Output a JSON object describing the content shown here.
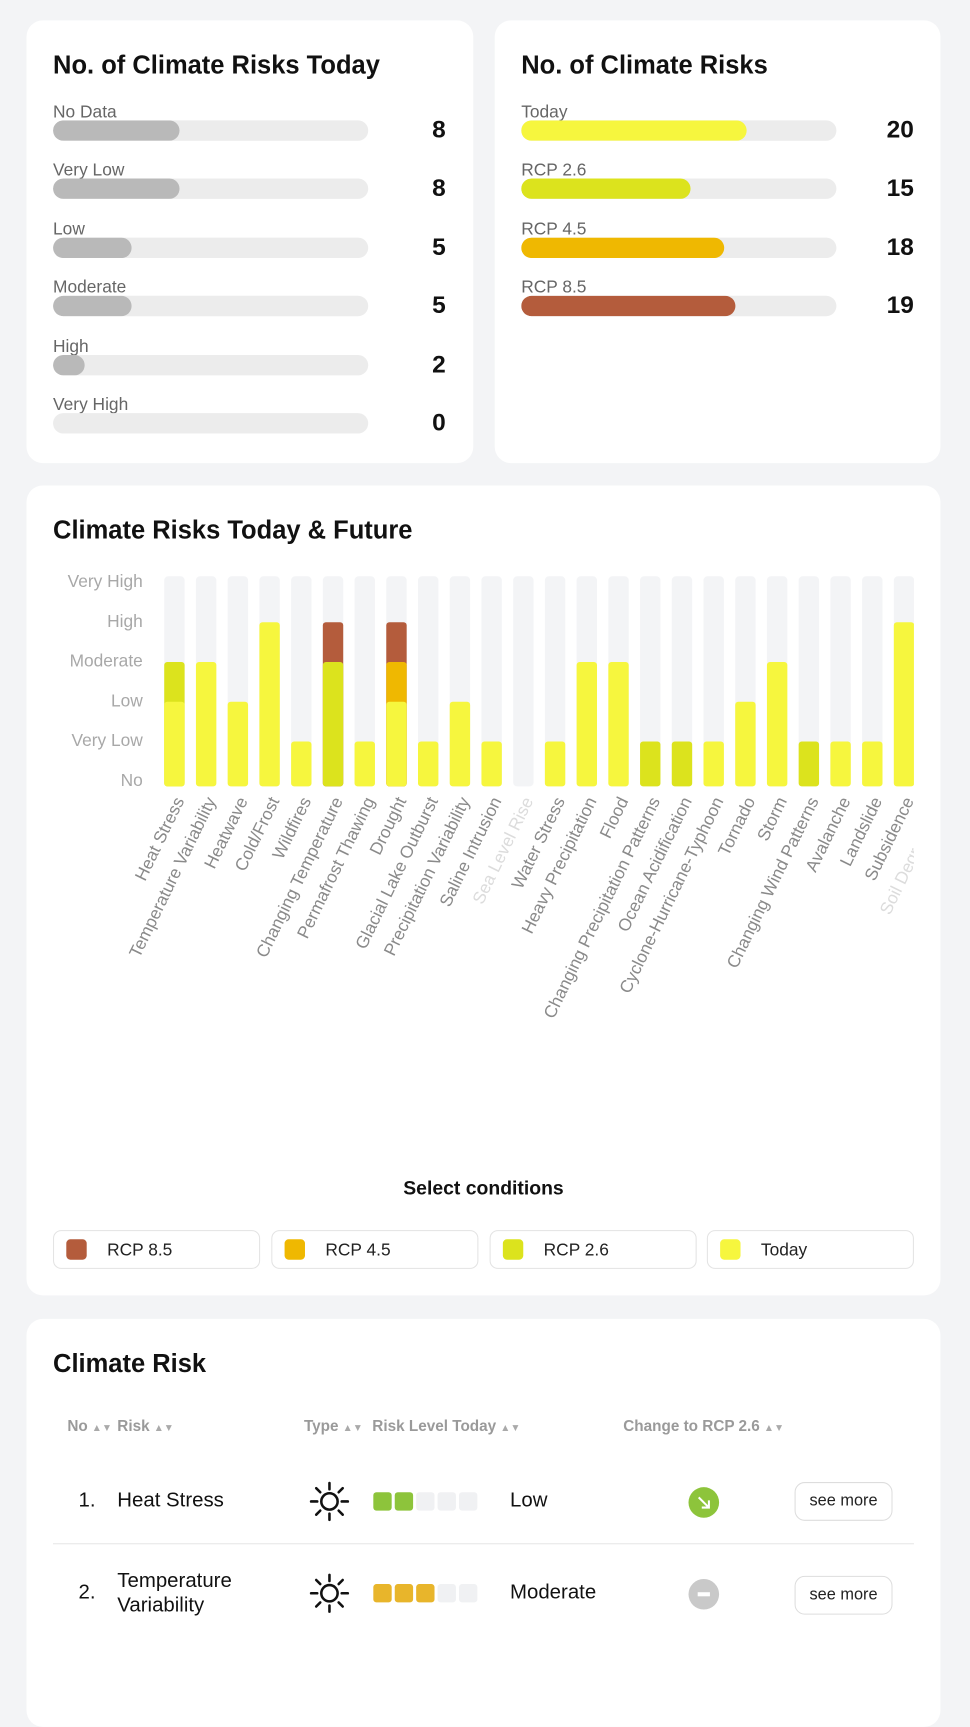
{
  "summary_today": {
    "type": "bar",
    "title": "No. of Climate Risks Today",
    "categories": [
      "No Data",
      "Very Low",
      "Low",
      "Moderate",
      "High",
      "Very High"
    ],
    "values": [
      8,
      8,
      5,
      5,
      2,
      0
    ],
    "xlim": [
      0,
      20
    ],
    "color": "#b9b9b9"
  },
  "summary_scenarios": {
    "type": "bar",
    "title": "No. of Climate Risks",
    "categories": [
      "Today",
      "RCP 2.6",
      "RCP 4.5",
      "RCP 8.5"
    ],
    "values": [
      20,
      15,
      18,
      19
    ],
    "xlim": [
      0,
      28
    ],
    "colors": [
      "#f6f63e",
      "#dce31d",
      "#efb801",
      "#b45c3c"
    ]
  },
  "chart_data": {
    "type": "bar",
    "title": "Climate Risks Today & Future",
    "categories": [
      "Heat Stress",
      "Temperature Variability",
      "Heatwave",
      "Cold/Frost",
      "Wildfires",
      "Changing Temperature",
      "Permafrost Thawing",
      "Drought",
      "Glacial Lake Outburst",
      "Precipitation Variability",
      "Saline Intrusion",
      "Sea Level Rise",
      "Water Stress",
      "Heavy Precipitation",
      "Flood",
      "Changing Precipitation Patterns",
      "Ocean Acidification",
      "Cyclone-Hurricane-Typhoon",
      "Tornado",
      "Storm",
      "Changing Wind Patterns",
      "Avalanche",
      "Landslide",
      "Subsidence",
      "Soil Degradation"
    ],
    "ylim": [
      0,
      5
    ],
    "yticks": [
      {
        "value": 0,
        "label": "No"
      },
      {
        "value": 1,
        "label": "Very Low"
      },
      {
        "value": 2,
        "label": "Low"
      },
      {
        "value": 3,
        "label": "Moderate"
      },
      {
        "value": 4,
        "label": "High"
      },
      {
        "value": 5,
        "label": "Very High"
      }
    ],
    "series": [
      {
        "name": "RCP 8.5",
        "color": "#b45c3c",
        "values": [
          null,
          null,
          null,
          null,
          null,
          4,
          null,
          4,
          null,
          null,
          null,
          null,
          null,
          null,
          null,
          null,
          null,
          null,
          null,
          null,
          null,
          null,
          null,
          null,
          null
        ]
      },
      {
        "name": "RCP 4.5",
        "color": "#efb801",
        "values": [
          null,
          null,
          null,
          null,
          null,
          null,
          null,
          3,
          null,
          null,
          null,
          null,
          null,
          null,
          null,
          null,
          null,
          null,
          null,
          null,
          null,
          null,
          null,
          null,
          null
        ]
      },
      {
        "name": "RCP 2.6",
        "color": "#dce31d",
        "values": [
          3,
          null,
          null,
          null,
          null,
          3,
          null,
          null,
          null,
          null,
          null,
          null,
          null,
          null,
          null,
          1,
          1,
          null,
          null,
          null,
          1,
          null,
          null,
          null,
          null
        ]
      },
      {
        "name": "Today",
        "color": "#f6f63e",
        "values": [
          2,
          3,
          2,
          4,
          1,
          null,
          1,
          2,
          1,
          2,
          1,
          null,
          1,
          3,
          3,
          null,
          null,
          1,
          2,
          3,
          null,
          1,
          1,
          4,
          null
        ]
      }
    ],
    "legend_title": "Select conditions"
  },
  "table": {
    "title": "Climate Risk",
    "columns": [
      "No",
      "Risk",
      "Type",
      "Risk Level Today",
      "Change to RCP 2.6"
    ],
    "rows": [
      {
        "no": "1.",
        "risk": "Heat Stress",
        "level": 2,
        "level_label": "Low",
        "level_color": "#8dc43b",
        "action": "see more"
      },
      {
        "no": "2.",
        "risk": "Temperature Variability",
        "level": 3,
        "level_label": "Moderate",
        "level_color": "#e8b52b",
        "action": "see more"
      }
    ]
  }
}
